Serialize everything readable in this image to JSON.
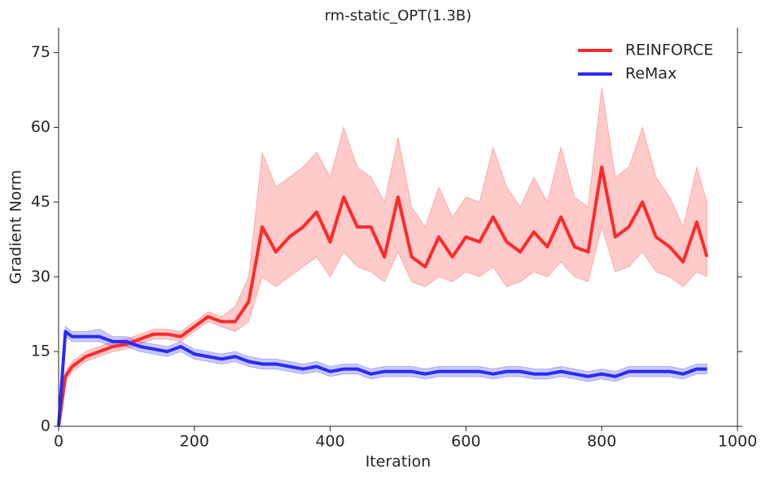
{
  "chart_data": {
    "type": "line",
    "title": "rm-static_OPT(1.3B)",
    "x_label": "Iteration",
    "y_label": "Gradient Norm",
    "x": [
      0,
      10,
      20,
      40,
      60,
      80,
      100,
      120,
      140,
      160,
      180,
      200,
      220,
      240,
      260,
      280,
      300,
      320,
      340,
      360,
      380,
      400,
      420,
      440,
      460,
      480,
      500,
      520,
      540,
      560,
      580,
      600,
      620,
      640,
      660,
      680,
      700,
      720,
      740,
      760,
      780,
      800,
      820,
      840,
      860,
      880,
      900,
      920,
      940,
      955
    ],
    "series": [
      {
        "name": "REINFORCE",
        "color": "#ff2a2a",
        "values": [
          0,
          10,
          12,
          14,
          15,
          16,
          16.5,
          17.5,
          18.5,
          18.5,
          18,
          20,
          22,
          21,
          21,
          25,
          40,
          35,
          38,
          40,
          43,
          37,
          46,
          40,
          40,
          34,
          46,
          34,
          32,
          38,
          34,
          38,
          37,
          42,
          37,
          35,
          39,
          36,
          42,
          36,
          35,
          52,
          38,
          40,
          45,
          38,
          36,
          33,
          41,
          34
        ],
        "lower": [
          0,
          9,
          11,
          13,
          14,
          15,
          15.5,
          16.5,
          17.5,
          17.5,
          17,
          19,
          21,
          20,
          19,
          21,
          30,
          28,
          30,
          32,
          34,
          30,
          35,
          32,
          31,
          29,
          35,
          29,
          28,
          30,
          29,
          31,
          30,
          32,
          28,
          29,
          31,
          30,
          33,
          30,
          29,
          40,
          31,
          32,
          35,
          31,
          30,
          28,
          31,
          30
        ],
        "upper": [
          0,
          11,
          13,
          15,
          16,
          17,
          17.5,
          18.5,
          19.5,
          19.5,
          19,
          21,
          23,
          22,
          24,
          30,
          55,
          48,
          50,
          52,
          55,
          50,
          60,
          52,
          50,
          45,
          58,
          44,
          40,
          48,
          42,
          46,
          45,
          56,
          48,
          44,
          50,
          45,
          56,
          46,
          44,
          68,
          50,
          52,
          60,
          50,
          46,
          40,
          52,
          45
        ]
      },
      {
        "name": "ReMax",
        "color": "#2a2aff",
        "values": [
          0,
          19,
          18,
          18,
          18,
          17,
          17,
          16,
          15.5,
          15,
          16,
          14.5,
          14,
          13.5,
          14,
          13,
          12.5,
          12.5,
          12,
          11.5,
          12,
          11,
          11.5,
          11.5,
          10.5,
          11,
          11,
          11,
          10.5,
          11,
          11,
          11,
          11,
          10.5,
          11,
          11,
          10.5,
          10.5,
          11,
          10.5,
          10,
          10.5,
          10,
          11,
          11,
          11,
          11,
          10.5,
          11.5,
          11.5
        ],
        "lower": [
          0,
          18,
          17,
          17,
          17,
          16,
          16,
          15,
          14.5,
          14,
          15,
          13.5,
          13,
          12.5,
          13,
          12,
          11.5,
          11.5,
          11,
          10.5,
          11,
          10,
          10.5,
          10.5,
          9.5,
          10,
          10,
          10,
          9.5,
          10,
          10,
          10,
          10,
          9.5,
          10,
          10,
          9.5,
          9.5,
          10,
          9.5,
          9,
          9.5,
          9,
          10,
          10,
          10,
          10,
          9.5,
          10.5,
          10.5
        ],
        "upper": [
          0,
          20,
          19,
          19,
          19.5,
          18,
          18,
          17,
          16.5,
          16,
          17,
          15.5,
          15,
          14.5,
          15,
          14,
          13.5,
          13.5,
          13,
          12.5,
          13,
          12,
          12.5,
          12.5,
          11.5,
          12,
          12,
          12,
          11.5,
          12,
          12,
          12,
          12,
          11.5,
          12,
          12,
          11.5,
          11.5,
          12,
          11.5,
          11,
          11.5,
          11,
          12,
          12,
          12,
          12,
          11.5,
          12.5,
          12.5
        ]
      }
    ],
    "xlim": [
      0,
      1000
    ],
    "xticks": [
      0,
      200,
      400,
      600,
      800,
      1000
    ],
    "ylim": [
      0,
      80
    ],
    "yticks": [
      0,
      15,
      30,
      45,
      60,
      75
    ],
    "legend": "upper right"
  }
}
